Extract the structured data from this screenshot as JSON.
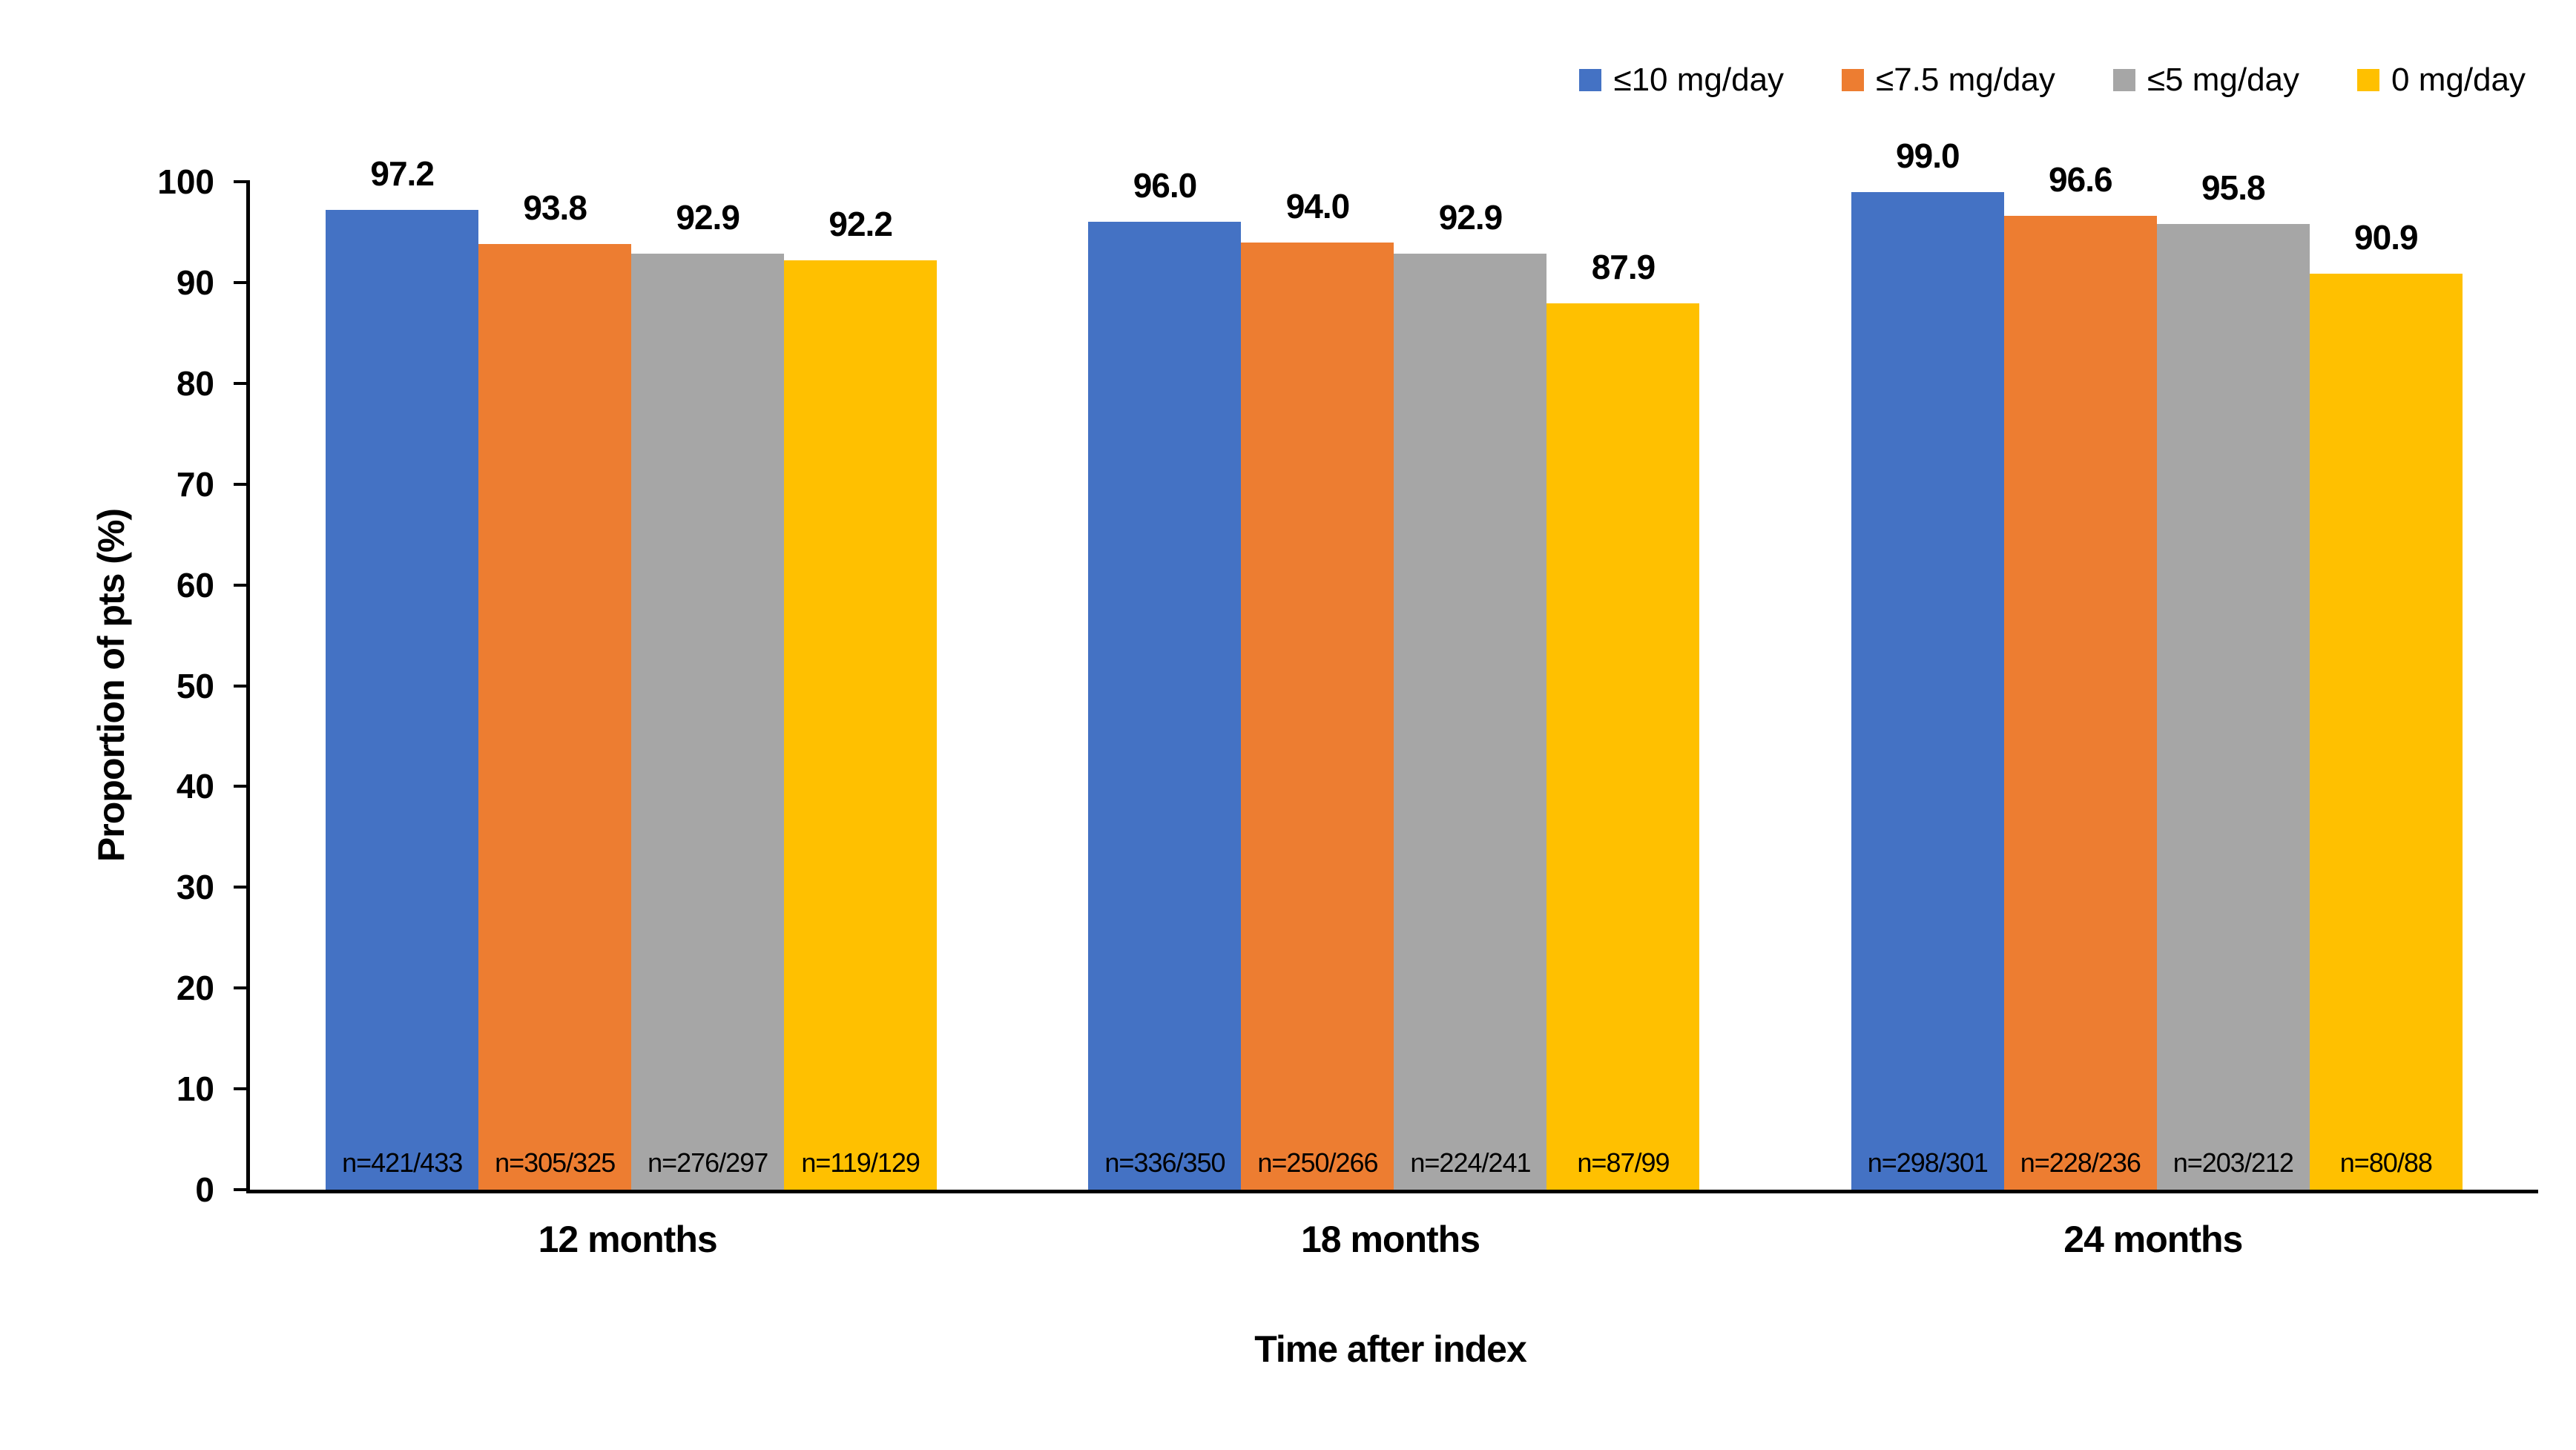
{
  "chart_data": {
    "type": "bar",
    "title": "",
    "xlabel": "Time after index",
    "ylabel": "Proportion of pts (%)",
    "ylim": [
      0,
      100
    ],
    "ytick_step": 10,
    "ytick_labels": [
      "0",
      "10",
      "20",
      "30",
      "40",
      "50",
      "60",
      "70",
      "80",
      "90",
      "100"
    ],
    "grid": false,
    "legend_position": "top-right",
    "value_labels": true,
    "value_label_decimals": 1,
    "categories": [
      "12 months",
      "18 months",
      "24 months"
    ],
    "series": [
      {
        "name": "≤10 mg/day",
        "color": "#4472C4",
        "values": [
          97.2,
          96.0,
          99.0
        ],
        "n_labels": [
          "n=421/433",
          "n=336/350",
          "n=298/301"
        ]
      },
      {
        "name": "≤7.5 mg/day",
        "color": "#ED7D31",
        "values": [
          93.8,
          94.0,
          96.6
        ],
        "n_labels": [
          "n=305/325",
          "n=250/266",
          "n=228/236"
        ]
      },
      {
        "name": "≤5 mg/day",
        "color": "#A6A6A6",
        "values": [
          92.9,
          92.9,
          95.8
        ],
        "n_labels": [
          "n=276/297",
          "n=224/241",
          "n=203/212"
        ]
      },
      {
        "name": "0 mg/day",
        "color": "#FFC000",
        "values": [
          92.2,
          87.9,
          90.9
        ],
        "n_labels": [
          "n=119/129",
          "n=87/99",
          "n=80/88"
        ]
      }
    ],
    "axis_color": "#000000",
    "text_color": "#000000",
    "background_color": "#FFFFFF"
  }
}
